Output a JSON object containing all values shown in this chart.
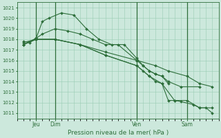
{
  "title": "Pression niveau de la mer( hPa )",
  "ylim": [
    1010.5,
    1021.5
  ],
  "yticks": [
    1011,
    1012,
    1013,
    1014,
    1015,
    1016,
    1017,
    1018,
    1019,
    1020,
    1021
  ],
  "background_color": "#cce8dc",
  "grid_color": "#99ccb3",
  "line_color": "#2d6e3a",
  "xlim": [
    0,
    16
  ],
  "day_vline_x": [
    1.5,
    3.0,
    9.5,
    13.5
  ],
  "day_labels": [
    "Jeu",
    "Dim",
    "Ven",
    "Sam"
  ],
  "series": [
    {
      "x": [
        0.5,
        1.0,
        1.5,
        2.0,
        2.5,
        3.5,
        4.5,
        5.5,
        6.5,
        7.5,
        8.5,
        9.5,
        10.0,
        10.5,
        11.0,
        11.5,
        12.0
      ],
      "y": [
        1017.8,
        1017.7,
        1018.1,
        1019.7,
        1020.0,
        1020.5,
        1020.3,
        1019.0,
        1018.0,
        1017.5,
        1017.5,
        1016.2,
        1015.5,
        1015.0,
        1014.7,
        1014.5,
        1013.8
      ]
    },
    {
      "x": [
        0.5,
        1.5,
        2.0,
        3.0,
        4.0,
        5.0,
        6.0,
        7.0,
        8.0,
        9.5,
        10.0,
        10.5,
        11.0,
        11.5,
        12.0,
        13.0,
        14.5
      ],
      "y": [
        1017.5,
        1018.1,
        1018.5,
        1019.0,
        1018.8,
        1018.5,
        1018.0,
        1017.5,
        1017.5,
        1016.0,
        1015.5,
        1015.0,
        1014.7,
        1014.5,
        1014.0,
        1013.5,
        1013.5
      ]
    },
    {
      "x": [
        0.5,
        1.5,
        3.0,
        5.0,
        7.0,
        9.5,
        11.0,
        12.0,
        13.5,
        14.5,
        15.5
      ],
      "y": [
        1017.7,
        1018.0,
        1018.0,
        1017.5,
        1016.8,
        1016.0,
        1015.5,
        1015.0,
        1014.5,
        1013.8,
        1013.5
      ]
    },
    {
      "x": [
        0.5,
        1.5,
        3.0,
        5.0,
        7.0,
        9.5,
        10.0,
        10.5,
        11.0,
        11.5,
        12.0,
        12.5,
        13.0,
        14.0,
        14.5,
        15.5
      ],
      "y": [
        1017.5,
        1018.0,
        1018.0,
        1017.5,
        1016.5,
        1015.5,
        1015.0,
        1014.5,
        1014.0,
        1013.8,
        1012.2,
        1012.2,
        1012.1,
        1011.8,
        1011.5,
        1011.5
      ]
    },
    {
      "x": [
        0.5,
        1.5,
        3.0,
        5.0,
        7.0,
        9.5,
        10.5,
        11.5,
        12.5,
        13.5,
        14.5,
        15.0,
        15.5
      ],
      "y": [
        1017.5,
        1018.0,
        1018.0,
        1017.5,
        1016.5,
        1015.5,
        1014.5,
        1013.8,
        1012.2,
        1012.2,
        1011.5,
        1011.5,
        1011.0
      ]
    }
  ]
}
